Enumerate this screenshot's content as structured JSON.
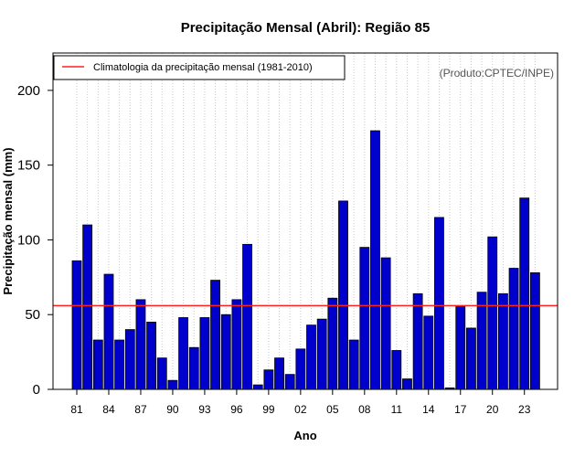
{
  "chart_data": {
    "type": "bar",
    "title": "Precipitação Mensal (Abril): Região 85",
    "xlabel": "Ano",
    "ylabel": "Precipitação mensal (mm)",
    "credit": "(Produto:CPTEC/INPE)",
    "ylim": [
      0,
      225
    ],
    "yticks": [
      0,
      50,
      100,
      150,
      200
    ],
    "categories": [
      "81",
      "82",
      "83",
      "84",
      "85",
      "86",
      "87",
      "88",
      "89",
      "90",
      "91",
      "92",
      "93",
      "94",
      "95",
      "96",
      "97",
      "98",
      "99",
      "00",
      "01",
      "02",
      "03",
      "04",
      "05",
      "06",
      "07",
      "08",
      "09",
      "10",
      "11",
      "12",
      "13",
      "14",
      "15",
      "16",
      "17",
      "18",
      "19",
      "20",
      "21",
      "22",
      "23",
      "24"
    ],
    "xtick_labels": [
      "81",
      "84",
      "87",
      "90",
      "93",
      "96",
      "99",
      "02",
      "05",
      "08",
      "11",
      "14",
      "17",
      "20",
      "23"
    ],
    "values": [
      86,
      110,
      33,
      77,
      33,
      40,
      60,
      45,
      21,
      6,
      48,
      28,
      48,
      73,
      50,
      60,
      97,
      3,
      13,
      21,
      10,
      27,
      43,
      47,
      61,
      126,
      33,
      95,
      173,
      88,
      26,
      7,
      64,
      49,
      115,
      1,
      56,
      41,
      65,
      102,
      64,
      81,
      128,
      78
    ],
    "bar_color": "#0000cd",
    "reference_line": {
      "value": 56,
      "color": "#ff2020",
      "label": "Climatologia da precipitação mensal (1981-2010)"
    },
    "legend_position": "top-left",
    "grid": "vertical-dotted"
  }
}
